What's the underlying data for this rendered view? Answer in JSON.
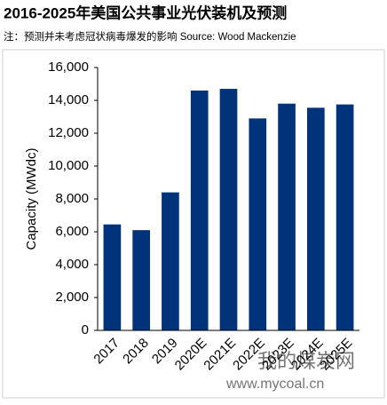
{
  "chart_data": {
    "type": "bar",
    "title": "2016-2025年美国公共事业光伏装机及预测",
    "subtitle": "注：预测并未考虑冠状病毒爆发的影响    Source: Wood Mackenzie",
    "y_label": "Capacity (MWdc)",
    "categories": [
      "2017",
      "2018",
      "2019",
      "2020E",
      "2021E",
      "2022E",
      "2023E",
      "2024E",
      "2025E"
    ],
    "values": [
      6450,
      6100,
      8400,
      14600,
      14700,
      12900,
      13800,
      13550,
      13750
    ],
    "color": "#00337a",
    "ylim": [
      0,
      16000
    ],
    "yticks": [
      0,
      {
        "value": 2000,
        "label": "2,000"
      },
      {
        "value": 4000,
        "label": "4,000"
      },
      {
        "value": 6000,
        "label": "6,000"
      },
      {
        "value": 8000,
        "label": "8,000"
      },
      {
        "value": 10000,
        "label": "10,000"
      },
      {
        "value": 12000,
        "label": "12,000"
      },
      {
        "value": 14000,
        "label": "14,000"
      },
      {
        "value": 16000,
        "label": "16,000"
      }
    ],
    "grid": false,
    "watermark": [
      "我的煤炭网",
      "www.mycoal.cn"
    ]
  }
}
